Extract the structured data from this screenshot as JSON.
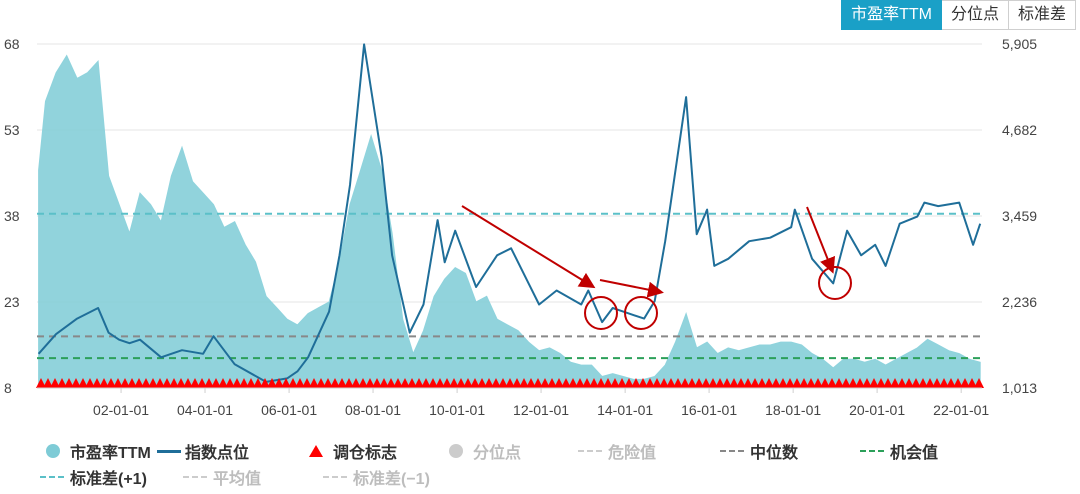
{
  "tabs": [
    {
      "label": "市盈率TTM",
      "active": true
    },
    {
      "label": "分位点",
      "active": false
    },
    {
      "label": "标准差",
      "active": false
    }
  ],
  "colors": {
    "pe_fill": "#7ecbd6",
    "index_line": "#1f6e99",
    "marker": "#ff0000",
    "median": "#888888",
    "opportunity": "#2ca05a",
    "std_plus": "#5bc0c8",
    "dim": "#cccccc",
    "annotation": "#c00000"
  },
  "chart_data": {
    "type": "area",
    "title": "",
    "left_axis": {
      "ticks": [
        "8",
        "23",
        "38",
        "53",
        "68"
      ],
      "ylim": [
        8,
        68
      ]
    },
    "right_axis": {
      "ticks": [
        "1,013",
        "2,236",
        "3,459",
        "4,682",
        "5,905"
      ],
      "ylim": [
        1013,
        5905
      ]
    },
    "x_ticks": [
      "02-01-01",
      "04-01-01",
      "06-01-01",
      "08-01-01",
      "10-01-01",
      "12-01-01",
      "14-01-01",
      "16-01-01",
      "18-01-01",
      "20-01-01",
      "22-01-01"
    ],
    "xlim": [
      "2000-01-01",
      "2022-07-01"
    ],
    "reference_lines": {
      "std_plus_1": 38.4,
      "median": 17.0,
      "opportunity": 13.2
    },
    "series": [
      {
        "name": "市盈率TTM",
        "axis": "left",
        "points": [
          [
            "2000-01",
            "46"
          ],
          [
            "2000-03",
            "58"
          ],
          [
            "2000-06",
            "63"
          ],
          [
            "2000-09",
            "66"
          ],
          [
            "2000-12",
            "62"
          ],
          [
            "2001-03",
            "63"
          ],
          [
            "2001-06",
            "65"
          ],
          [
            "2001-09",
            "45"
          ],
          [
            "2001-12",
            "40"
          ],
          [
            "2002-03",
            "35"
          ],
          [
            "2002-06",
            "42"
          ],
          [
            "2002-09",
            "40"
          ],
          [
            "2002-12",
            "37"
          ],
          [
            "2003-03",
            "45"
          ],
          [
            "2003-06",
            "50"
          ],
          [
            "2003-09",
            "44"
          ],
          [
            "2003-12",
            "42"
          ],
          [
            "2004-03",
            "40"
          ],
          [
            "2004-06",
            "36"
          ],
          [
            "2004-09",
            "37"
          ],
          [
            "2004-12",
            "33"
          ],
          [
            "2005-03",
            "30"
          ],
          [
            "2005-06",
            "24"
          ],
          [
            "2005-09",
            "22"
          ],
          [
            "2005-12",
            "20"
          ],
          [
            "2006-03",
            "19"
          ],
          [
            "2006-06",
            "21"
          ],
          [
            "2006-09",
            "22"
          ],
          [
            "2006-12",
            "23"
          ],
          [
            "2007-03",
            "30"
          ],
          [
            "2007-06",
            "40"
          ],
          [
            "2007-09",
            "46"
          ],
          [
            "2007-12",
            "52"
          ],
          [
            "2008-03",
            "46"
          ],
          [
            "2008-06",
            "35"
          ],
          [
            "2008-09",
            "20"
          ],
          [
            "2008-12",
            "14"
          ],
          [
            "2009-03",
            "18"
          ],
          [
            "2009-06",
            "24"
          ],
          [
            "2009-09",
            "27"
          ],
          [
            "2009-12",
            "29"
          ],
          [
            "2010-03",
            "28"
          ],
          [
            "2010-06",
            "23"
          ],
          [
            "2010-09",
            "24"
          ],
          [
            "2010-12",
            "20"
          ],
          [
            "2011-03",
            "19"
          ],
          [
            "2011-06",
            "18"
          ],
          [
            "2011-09",
            "16"
          ],
          [
            "2011-12",
            "14.5"
          ],
          [
            "2012-03",
            "15"
          ],
          [
            "2012-06",
            "14"
          ],
          [
            "2012-09",
            "12.5"
          ],
          [
            "2012-12",
            "12"
          ],
          [
            "2013-03",
            "12"
          ],
          [
            "2013-06",
            "10"
          ],
          [
            "2013-09",
            "10.5"
          ],
          [
            "2013-12",
            "10"
          ],
          [
            "2014-03",
            "9.5"
          ],
          [
            "2014-06",
            "9.5"
          ],
          [
            "2014-09",
            "10"
          ],
          [
            "2014-12",
            "12"
          ],
          [
            "2015-03",
            "16"
          ],
          [
            "2015-06",
            "21"
          ],
          [
            "2015-09",
            "15"
          ],
          [
            "2015-12",
            "16"
          ],
          [
            "2016-03",
            "14"
          ],
          [
            "2016-06",
            "15"
          ],
          [
            "2016-09",
            "14.5"
          ],
          [
            "2016-12",
            "15"
          ],
          [
            "2017-03",
            "15.5"
          ],
          [
            "2017-06",
            "15.5"
          ],
          [
            "2017-09",
            "16"
          ],
          [
            "2017-12",
            "16"
          ],
          [
            "2018-03",
            "15.5"
          ],
          [
            "2018-06",
            "14"
          ],
          [
            "2018-09",
            "13"
          ],
          [
            "2018-12",
            "11.5"
          ],
          [
            "2019-03",
            "13"
          ],
          [
            "2019-06",
            "13"
          ],
          [
            "2019-09",
            "12.5"
          ],
          [
            "2019-12",
            "13"
          ],
          [
            "2020-03",
            "12"
          ],
          [
            "2020-06",
            "13"
          ],
          [
            "2020-09",
            "14"
          ],
          [
            "2020-12",
            "15"
          ],
          [
            "2021-03",
            "16.5"
          ],
          [
            "2021-06",
            "15.5"
          ],
          [
            "2021-09",
            "14.5"
          ],
          [
            "2021-12",
            "14"
          ],
          [
            "2022-03",
            "13"
          ],
          [
            "2022-06",
            "12.5"
          ]
        ]
      },
      {
        "name": "指数点位",
        "axis": "right",
        "points": [
          [
            "2000-01",
            "1500"
          ],
          [
            "2000-06",
            "1780"
          ],
          [
            "2000-12",
            "2000"
          ],
          [
            "2001-06",
            "2150"
          ],
          [
            "2001-09",
            "1800"
          ],
          [
            "2001-12",
            "1700"
          ],
          [
            "2002-03",
            "1650"
          ],
          [
            "2002-06",
            "1700"
          ],
          [
            "2002-12",
            "1450"
          ],
          [
            "2003-06",
            "1550"
          ],
          [
            "2003-12",
            "1500"
          ],
          [
            "2004-03",
            "1750"
          ],
          [
            "2004-09",
            "1350"
          ],
          [
            "2005-06",
            "1100"
          ],
          [
            "2005-12",
            "1150"
          ],
          [
            "2006-03",
            "1250"
          ],
          [
            "2006-06",
            "1450"
          ],
          [
            "2006-12",
            "2100"
          ],
          [
            "2007-03",
            "2900"
          ],
          [
            "2007-06",
            "3900"
          ],
          [
            "2007-10",
            "5900"
          ],
          [
            "2008-03",
            "4300"
          ],
          [
            "2008-06",
            "2900"
          ],
          [
            "2008-11",
            "1800"
          ],
          [
            "2009-03",
            "2200"
          ],
          [
            "2009-07",
            "3400"
          ],
          [
            "2009-09",
            "2800"
          ],
          [
            "2009-12",
            "3250"
          ],
          [
            "2010-06",
            "2450"
          ],
          [
            "2010-12",
            "2900"
          ],
          [
            "2011-04",
            "3000"
          ],
          [
            "2011-09",
            "2500"
          ],
          [
            "2011-12",
            "2200"
          ],
          [
            "2012-05",
            "2400"
          ],
          [
            "2012-12",
            "2200"
          ],
          [
            "2013-02",
            "2400"
          ],
          [
            "2013-06",
            "1950"
          ],
          [
            "2013-09",
            "2150"
          ],
          [
            "2013-12",
            "2100"
          ],
          [
            "2014-06",
            "2000"
          ],
          [
            "2014-09",
            "2250"
          ],
          [
            "2014-12",
            "3100"
          ],
          [
            "2015-06",
            "5150"
          ],
          [
            "2015-09",
            "3200"
          ],
          [
            "2015-12",
            "3550"
          ],
          [
            "2016-02",
            "2750"
          ],
          [
            "2016-06",
            "2850"
          ],
          [
            "2016-12",
            "3100"
          ],
          [
            "2017-06",
            "3150"
          ],
          [
            "2017-12",
            "3300"
          ],
          [
            "2018-01",
            "3550"
          ],
          [
            "2018-06",
            "2850"
          ],
          [
            "2018-12",
            "2500"
          ],
          [
            "2019-04",
            "3250"
          ],
          [
            "2019-08",
            "2900"
          ],
          [
            "2019-12",
            "3050"
          ],
          [
            "2020-03",
            "2750"
          ],
          [
            "2020-07",
            "3350"
          ],
          [
            "2020-12",
            "3450"
          ],
          [
            "2021-02",
            "3650"
          ],
          [
            "2021-06",
            "3600"
          ],
          [
            "2021-12",
            "3650"
          ],
          [
            "2022-04",
            "3050"
          ],
          [
            "2022-06",
            "3350"
          ]
        ]
      },
      {
        "name": "调仓标志",
        "type": "markers"
      }
    ],
    "legend": [
      {
        "label": "市盈率TTM",
        "symbol": "circle",
        "active": true
      },
      {
        "label": "指数点位",
        "symbol": "line",
        "active": true
      },
      {
        "label": "调仓标志",
        "symbol": "triangle",
        "active": true
      },
      {
        "label": "分位点",
        "symbol": "circle",
        "active": false
      },
      {
        "label": "危险值",
        "symbol": "dash",
        "active": false
      },
      {
        "label": "中位数",
        "symbol": "dash",
        "active": true
      },
      {
        "label": "机会值",
        "symbol": "dash",
        "active": true
      },
      {
        "label": "标准差(+1)",
        "symbol": "dash",
        "active": true
      },
      {
        "label": "平均值",
        "symbol": "dash",
        "active": false
      },
      {
        "label": "标准差(−1)",
        "symbol": "dash",
        "active": false
      }
    ]
  }
}
